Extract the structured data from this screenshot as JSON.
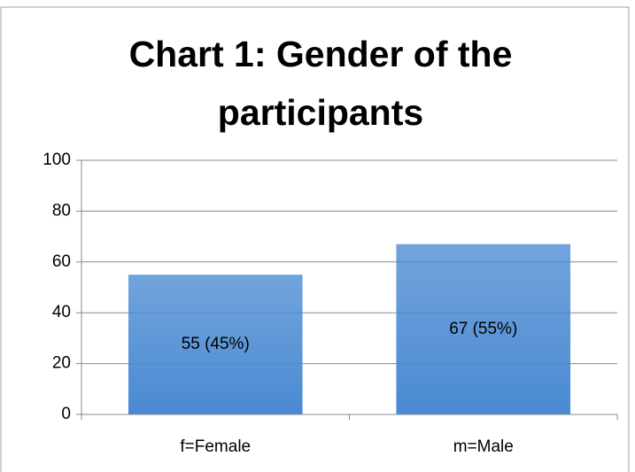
{
  "chart_data": {
    "type": "bar",
    "title": "Chart 1: Gender of the participants",
    "categories": [
      "f=Female",
      "m=Male"
    ],
    "values": [
      55,
      67
    ],
    "value_labels": [
      "55 (45%)",
      "67 (55%)"
    ],
    "color": "#4a8ad2",
    "ylim": [
      0,
      100
    ],
    "yticks": [
      0,
      20,
      40,
      60,
      80,
      100
    ],
    "grid": true
  }
}
